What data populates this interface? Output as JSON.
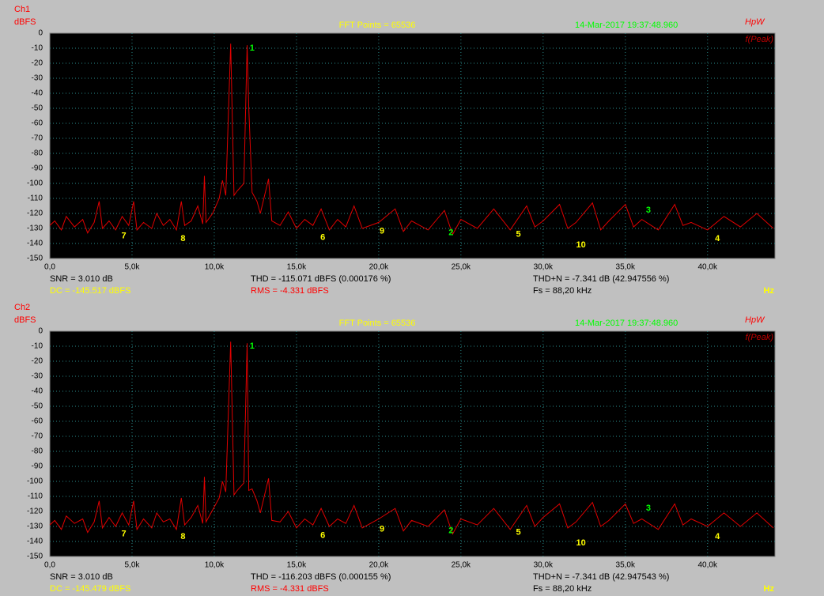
{
  "chart_data": [
    {
      "type": "line",
      "channel": "Ch1",
      "y_label": "dBFS",
      "fft_points": "FFT Points = 65536",
      "timestamp": "14-Mar-2017 19:37:48.960",
      "brand": "HpW",
      "mode": "f(Peak)",
      "x_unit": "Hz",
      "xlim": [
        0,
        44100
      ],
      "ylim": [
        -150,
        0
      ],
      "xticks": [
        {
          "value": 0,
          "label": "0,0"
        },
        {
          "value": 5000,
          "label": "5,0k"
        },
        {
          "value": 10000,
          "label": "10,0k"
        },
        {
          "value": 15000,
          "label": "15,0k"
        },
        {
          "value": 20000,
          "label": "20,0k"
        },
        {
          "value": 25000,
          "label": "25,0k"
        },
        {
          "value": 30000,
          "label": "30,0k"
        },
        {
          "value": 35000,
          "label": "35,0k"
        },
        {
          "value": 40000,
          "label": "40,0k"
        }
      ],
      "yticks": [
        0,
        -10,
        -20,
        -30,
        -40,
        -50,
        -60,
        -70,
        -80,
        -90,
        -100,
        -110,
        -120,
        -130,
        -140,
        -150
      ],
      "grid": true,
      "stats": [
        {
          "text": "SNR = 3.010 dB",
          "color": "#000000"
        },
        {
          "text": "THD = -115.071 dBFS (0.000176 %)",
          "color": "#000000"
        },
        {
          "text": "THD+N = -7.341 dB (42.947556 %)",
          "color": "#000000"
        },
        {
          "text": "DC = -145.517 dBFS",
          "color": "#ffff00"
        },
        {
          "text": "RMS = -4.331 dBFS",
          "color": "#ff0000"
        },
        {
          "text": "Fs = 88,20 kHz",
          "color": "#000000"
        }
      ],
      "markers": [
        {
          "label": "1",
          "x": 12300,
          "y": -10,
          "color": "#00ff00"
        },
        {
          "label": "7",
          "x": 4500,
          "y": -135,
          "color": "#ffff00"
        },
        {
          "label": "8",
          "x": 8100,
          "y": -137,
          "color": "#ffff00"
        },
        {
          "label": "6",
          "x": 16600,
          "y": -136,
          "color": "#ffff00"
        },
        {
          "label": "9",
          "x": 20200,
          "y": -132,
          "color": "#ffff00"
        },
        {
          "label": "2",
          "x": 24400,
          "y": -133,
          "color": "#00ff00"
        },
        {
          "label": "5",
          "x": 28500,
          "y": -134,
          "color": "#ffff00"
        },
        {
          "label": "10",
          "x": 32300,
          "y": -141,
          "color": "#ffff00"
        },
        {
          "label": "3",
          "x": 36400,
          "y": -118,
          "color": "#00ff00"
        },
        {
          "label": "4",
          "x": 40600,
          "y": -137,
          "color": "#ffff00"
        }
      ],
      "x": [
        0,
        300,
        700,
        1000,
        1500,
        2000,
        2300,
        2700,
        3000,
        3200,
        3600,
        4000,
        4400,
        4800,
        5100,
        5300,
        5700,
        6200,
        6500,
        6900,
        7300,
        7700,
        8000,
        8200,
        8600,
        9000,
        9300,
        9400,
        9500,
        9900,
        10300,
        10500,
        10700,
        11000,
        11200,
        11400,
        11800,
        12000,
        12100,
        12300,
        12600,
        12800,
        13300,
        13500,
        14000,
        14500,
        15000,
        15500,
        16000,
        16500,
        17000,
        17500,
        18000,
        18500,
        19000,
        20000,
        21000,
        21500,
        22000,
        23000,
        24000,
        24500,
        25000,
        26000,
        27000,
        28000,
        29000,
        29500,
        30000,
        31000,
        31500,
        32000,
        33000,
        33500,
        34000,
        35000,
        35500,
        36000,
        37000,
        38000,
        38500,
        39000,
        40000,
        41000,
        42000,
        43000,
        44000
      ],
      "series": [
        {
          "color": "#e00000",
          "values": [
            -128,
            -125,
            -131,
            -122,
            -129,
            -124,
            -133,
            -126,
            -112,
            -130,
            -125,
            -131,
            -122,
            -128,
            -112,
            -131,
            -126,
            -130,
            -120,
            -128,
            -124,
            -131,
            -112,
            -128,
            -125,
            -115,
            -127,
            -95,
            -126,
            -120,
            -110,
            -98,
            -108,
            -7,
            -108,
            -105,
            -100,
            -8,
            -50,
            -106,
            -112,
            -120,
            -97,
            -125,
            -128,
            -119,
            -130,
            -124,
            -128,
            -117,
            -131,
            -124,
            -129,
            -115,
            -130,
            -126,
            -117,
            -132,
            -125,
            -131,
            -118,
            -134,
            -124,
            -130,
            -117,
            -131,
            -115,
            -129,
            -125,
            -114,
            -130,
            -126,
            -113,
            -131,
            -125,
            -114,
            -129,
            -124,
            -131,
            -114,
            -128,
            -126,
            -131,
            -122,
            -129,
            -120,
            -130
          ]
        }
      ]
    },
    {
      "type": "line",
      "channel": "Ch2",
      "y_label": "dBFS",
      "fft_points": "FFT Points = 65536",
      "timestamp": "14-Mar-2017 19:37:48.960",
      "brand": "HpW",
      "mode": "f(Peak)",
      "x_unit": "Hz",
      "xlim": [
        0,
        44100
      ],
      "ylim": [
        -150,
        0
      ],
      "xticks": [
        {
          "value": 0,
          "label": "0,0"
        },
        {
          "value": 5000,
          "label": "5,0k"
        },
        {
          "value": 10000,
          "label": "10,0k"
        },
        {
          "value": 15000,
          "label": "15,0k"
        },
        {
          "value": 20000,
          "label": "20,0k"
        },
        {
          "value": 25000,
          "label": "25,0k"
        },
        {
          "value": 30000,
          "label": "30,0k"
        },
        {
          "value": 35000,
          "label": "35,0k"
        },
        {
          "value": 40000,
          "label": "40,0k"
        }
      ],
      "yticks": [
        0,
        -10,
        -20,
        -30,
        -40,
        -50,
        -60,
        -70,
        -80,
        -90,
        -100,
        -110,
        -120,
        -130,
        -140,
        -150
      ],
      "grid": true,
      "stats": [
        {
          "text": "SNR = 3.010 dB",
          "color": "#000000"
        },
        {
          "text": "THD = -116.203 dBFS (0.000155 %)",
          "color": "#000000"
        },
        {
          "text": "THD+N = -7.341 dB (42.947543 %)",
          "color": "#000000"
        },
        {
          "text": "DC = -145.479 dBFS",
          "color": "#ffff00"
        },
        {
          "text": "RMS = -4.331 dBFS",
          "color": "#ff0000"
        },
        {
          "text": "Fs = 88,20 kHz",
          "color": "#000000"
        }
      ],
      "markers": [
        {
          "label": "1",
          "x": 12300,
          "y": -10,
          "color": "#00ff00"
        },
        {
          "label": "7",
          "x": 4500,
          "y": -135,
          "color": "#ffff00"
        },
        {
          "label": "8",
          "x": 8100,
          "y": -137,
          "color": "#ffff00"
        },
        {
          "label": "6",
          "x": 16600,
          "y": -136,
          "color": "#ffff00"
        },
        {
          "label": "9",
          "x": 20200,
          "y": -132,
          "color": "#ffff00"
        },
        {
          "label": "2",
          "x": 24400,
          "y": -133,
          "color": "#00ff00"
        },
        {
          "label": "5",
          "x": 28500,
          "y": -134,
          "color": "#ffff00"
        },
        {
          "label": "10",
          "x": 32300,
          "y": -141,
          "color": "#ffff00"
        },
        {
          "label": "3",
          "x": 36400,
          "y": -118,
          "color": "#00ff00"
        },
        {
          "label": "4",
          "x": 40600,
          "y": -137,
          "color": "#ffff00"
        }
      ],
      "x": [
        0,
        300,
        700,
        1000,
        1500,
        2000,
        2300,
        2700,
        3000,
        3200,
        3600,
        4000,
        4400,
        4800,
        5100,
        5300,
        5700,
        6200,
        6500,
        6900,
        7300,
        7700,
        8000,
        8200,
        8600,
        9000,
        9300,
        9400,
        9500,
        9900,
        10300,
        10500,
        10700,
        11000,
        11200,
        11400,
        11800,
        12000,
        12100,
        12300,
        12600,
        12800,
        13300,
        13500,
        14000,
        14500,
        15000,
        15500,
        16000,
        16500,
        17000,
        17500,
        18000,
        18500,
        19000,
        20000,
        21000,
        21500,
        22000,
        23000,
        24000,
        24500,
        25000,
        26000,
        27000,
        28000,
        29000,
        29500,
        30000,
        31000,
        31500,
        32000,
        33000,
        33500,
        34000,
        35000,
        35500,
        36000,
        37000,
        38000,
        38500,
        39000,
        40000,
        41000,
        42000,
        43000,
        44000
      ],
      "series": [
        {
          "color": "#e00000",
          "values": [
            -129,
            -126,
            -132,
            -123,
            -128,
            -125,
            -134,
            -127,
            -113,
            -131,
            -124,
            -130,
            -121,
            -129,
            -113,
            -132,
            -125,
            -131,
            -121,
            -127,
            -125,
            -132,
            -111,
            -129,
            -124,
            -116,
            -128,
            -97,
            -127,
            -119,
            -111,
            -100,
            -107,
            -7,
            -109,
            -106,
            -101,
            -8,
            -106,
            -105,
            -113,
            -121,
            -98,
            -126,
            -127,
            -120,
            -131,
            -125,
            -129,
            -118,
            -130,
            -125,
            -128,
            -116,
            -131,
            -125,
            -118,
            -133,
            -126,
            -130,
            -119,
            -135,
            -125,
            -129,
            -118,
            -132,
            -116,
            -130,
            -124,
            -115,
            -131,
            -127,
            -114,
            -130,
            -126,
            -115,
            -128,
            -125,
            -132,
            -115,
            -129,
            -125,
            -130,
            -121,
            -130,
            -121,
            -131
          ]
        }
      ]
    }
  ]
}
